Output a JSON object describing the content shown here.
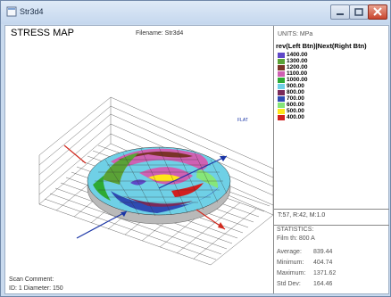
{
  "window": {
    "title": "Str3d4"
  },
  "plot": {
    "title": "STRESS MAP",
    "filename": "Filename: Str3d4",
    "scan_comment": "Scan Comment:",
    "scan_id": "ID: 1  Diameter: 150",
    "axis_label": "FLAT"
  },
  "panel": {
    "units": "UNITS: MPa",
    "nav": "rev(Left Btn)|Next(Right Btn)",
    "legend": [
      {
        "value": "1400.00",
        "color": "#5f48c8"
      },
      {
        "value": "1300.00",
        "color": "#5aa236"
      },
      {
        "value": "1200.00",
        "color": "#7a3328"
      },
      {
        "value": "1100.00",
        "color": "#cf61b3"
      },
      {
        "value": "1000.00",
        "color": "#2eaa33"
      },
      {
        "value": "900.00",
        "color": "#6fd0e6"
      },
      {
        "value": "800.00",
        "color": "#7a2a5a"
      },
      {
        "value": "700.00",
        "color": "#2e4bb3"
      },
      {
        "value": "600.00",
        "color": "#86e67a"
      },
      {
        "value": "500.00",
        "color": "#ffe61a"
      },
      {
        "value": "400.00",
        "color": "#d21f1f"
      }
    ],
    "scan_info": "T:57, R:42, M:1.0",
    "stats": {
      "heading": "STATISTICS:",
      "film": "Film th: 800 A",
      "rows": [
        {
          "label": "Average:",
          "value": "839.44"
        },
        {
          "label": "Minimum:",
          "value": "404.74"
        },
        {
          "label": "Maximum:",
          "value": "1371.62"
        },
        {
          "label": "Std Dev:",
          "value": "164.46"
        }
      ]
    }
  }
}
